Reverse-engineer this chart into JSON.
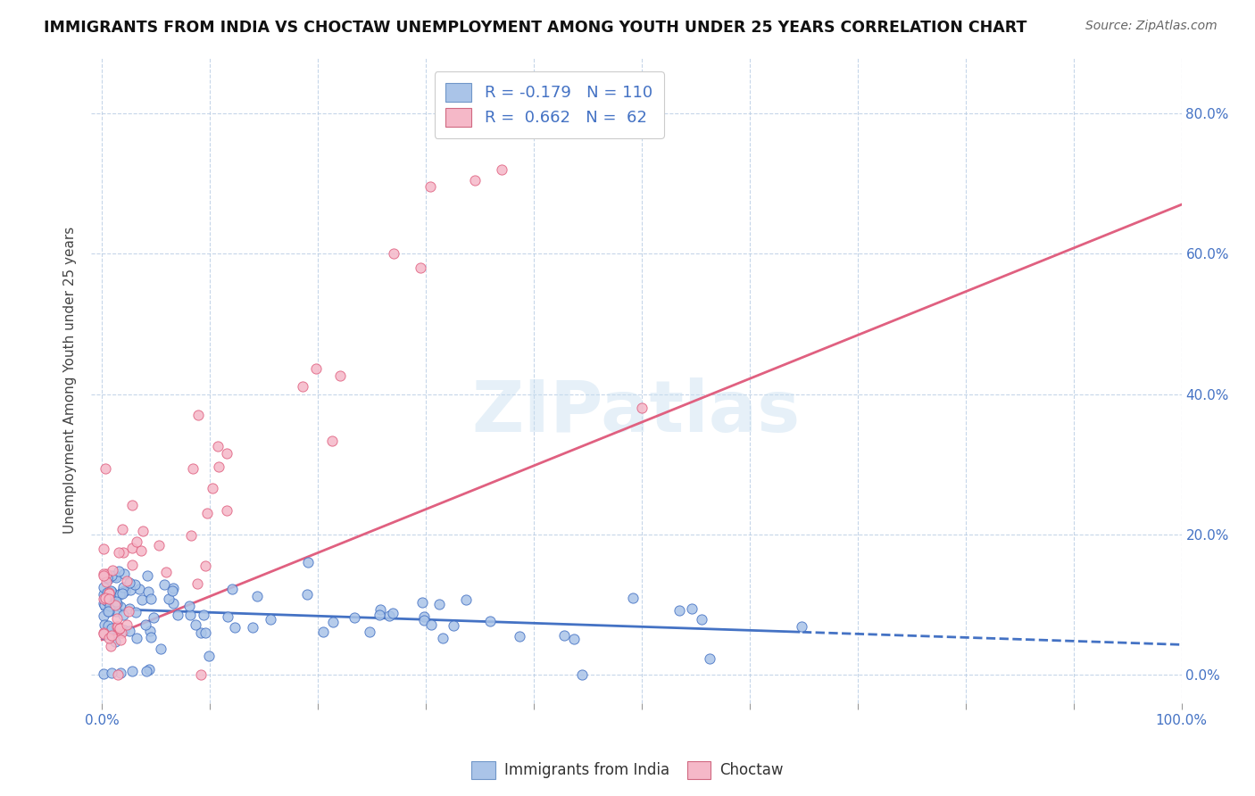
{
  "title": "IMMIGRANTS FROM INDIA VS CHOCTAW UNEMPLOYMENT AMONG YOUTH UNDER 25 YEARS CORRELATION CHART",
  "source": "Source: ZipAtlas.com",
  "ylabel": "Unemployment Among Youth under 25 years",
  "xlim": [
    -0.01,
    1.0
  ],
  "ylim": [
    -0.04,
    0.88
  ],
  "legend1_label": "Immigrants from India",
  "legend2_label": "Choctaw",
  "r1": -0.179,
  "n1": 110,
  "r2": 0.662,
  "n2": 62,
  "color_blue": "#aac4e8",
  "color_pink": "#f5b8c8",
  "color_blue_dark": "#4472c4",
  "color_pink_dark": "#e06080",
  "watermark": "ZIPatlas"
}
